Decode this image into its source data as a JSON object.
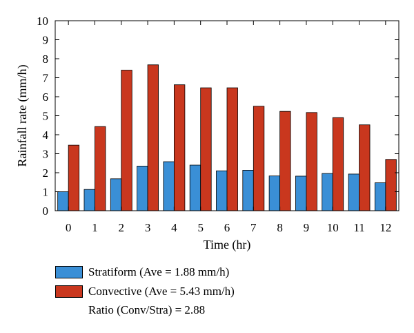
{
  "chart_data": {
    "type": "bar",
    "xlabel": "Time (hr)",
    "ylabel": "Rainfall rate (mm/h)",
    "ylim": [
      0,
      10
    ],
    "yticks": [
      0,
      1,
      2,
      3,
      4,
      5,
      6,
      7,
      8,
      9,
      10
    ],
    "categories": [
      "0",
      "1",
      "2",
      "3",
      "4",
      "5",
      "6",
      "7",
      "8",
      "9",
      "10",
      "11",
      "12"
    ],
    "series": [
      {
        "name": "Stratiform (Ave = 1.88 mm/h)",
        "color": "#3a8fd6",
        "values": [
          1.0,
          1.12,
          1.68,
          2.35,
          2.58,
          2.4,
          2.1,
          2.13,
          1.83,
          1.82,
          1.96,
          1.93,
          1.47
        ]
      },
      {
        "name": "Convective (Ave = 5.43 mm/h)",
        "color": "#c9371e",
        "values": [
          3.45,
          4.43,
          7.4,
          7.68,
          6.63,
          6.47,
          6.47,
          5.5,
          5.23,
          5.17,
          4.9,
          4.52,
          2.7
        ]
      }
    ],
    "annotation": "Ratio (Conv/Stra) = 2.88",
    "legend_position": "bottom-left, below plot",
    "grid": false
  }
}
